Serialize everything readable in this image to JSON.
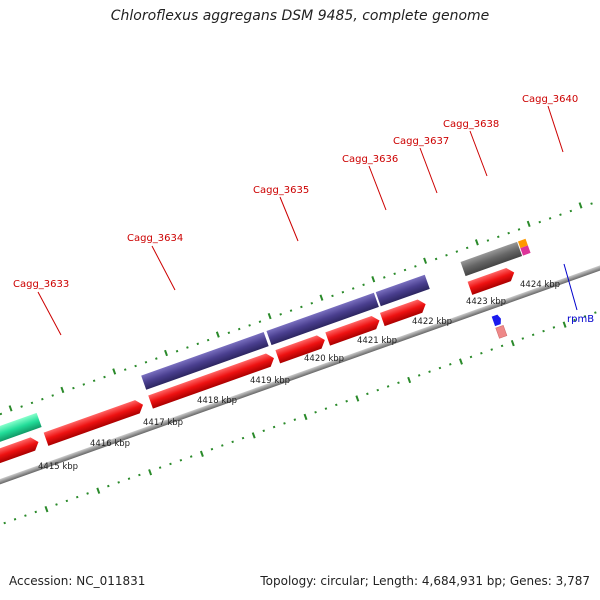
{
  "title": "Chloroflexus aggregans DSM 9485, complete genome",
  "footer": {
    "accession": "Accession: NC_011831",
    "stats": "Topology: circular; Length: 4,684,931 bp; Genes: 3,787"
  },
  "gene_labels": [
    {
      "id": "g3633",
      "text": "Cagg_3633",
      "color": "#cc0000"
    },
    {
      "id": "g3634",
      "text": "Cagg_3634",
      "color": "#cc0000"
    },
    {
      "id": "g3635",
      "text": "Cagg_3635",
      "color": "#cc0000"
    },
    {
      "id": "g3636",
      "text": "Cagg_3636",
      "color": "#cc0000"
    },
    {
      "id": "g3637",
      "text": "Cagg_3637",
      "color": "#cc0000"
    },
    {
      "id": "g3638",
      "text": "Cagg_3638",
      "color": "#cc0000"
    },
    {
      "id": "g3640",
      "text": "Cagg_3640",
      "color": "#cc0000"
    },
    {
      "id": "rpmB",
      "text": "rpmB",
      "color": "#0000cc"
    }
  ],
  "kbp_ticks": [
    "4415 kbp",
    "4416 kbp",
    "4417 kbp",
    "4418 kbp",
    "4419 kbp",
    "4420 kbp",
    "4421 kbp",
    "4422 kbp",
    "4423 kbp",
    "4424 kbp"
  ],
  "colors": {
    "cds": "#ee1111",
    "gene_outer": "#4a3f8f",
    "gene_green": "#22dd99",
    "gene_gray": "#666666",
    "rna": "#1a1aee",
    "backbone": "#999999",
    "ticks": "#2a8a2a"
  }
}
